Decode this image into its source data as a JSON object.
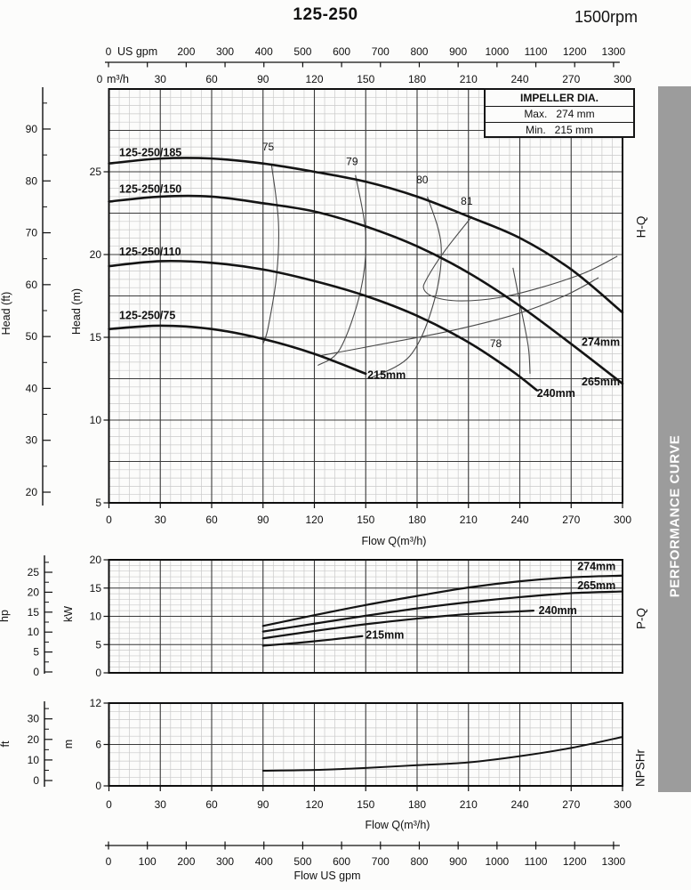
{
  "title": "125-250",
  "rpm": "1500rpm",
  "sidebar": {
    "label": "PERFORMANCE CURVE",
    "bg": "#9c9c9c",
    "fg": "#ffffff"
  },
  "impeller_box": {
    "title": "IMPELLER DIA.",
    "rows": [
      {
        "label": "Max.",
        "value": "274 mm"
      },
      {
        "label": "Min.",
        "value": "215 mm"
      }
    ]
  },
  "section_labels": {
    "hq": "H-Q",
    "pq": "P-Q",
    "npshr": "NPSHr"
  },
  "colors": {
    "grid_minor": "#c9c9c9",
    "grid_major": "#3b3b3b",
    "border": "#0f0f0f",
    "curve": "#141414",
    "eff": "#4a4a4a",
    "text": "#111111"
  },
  "top_axis": {
    "usgpm": {
      "zero": "0",
      "unit": "US gpm",
      "ticks": [
        200,
        300,
        400,
        500,
        600,
        700,
        800,
        900,
        1000,
        1100,
        1200,
        1300
      ]
    },
    "m3h": {
      "zero": "0",
      "unit": "m³/h",
      "ticks": [
        30,
        60,
        90,
        120,
        150,
        180,
        210,
        240,
        270,
        300
      ]
    }
  },
  "bottom_axis": {
    "usgpm": {
      "ticks": [
        0,
        100,
        200,
        300,
        400,
        500,
        600,
        700,
        800,
        900,
        1000,
        1100,
        1200,
        1300
      ],
      "label": "Flow US gpm"
    }
  },
  "chart_data": [
    {
      "id": "hq",
      "type": "line",
      "name": "H-Q",
      "x_range": [
        0,
        300
      ],
      "y_range": [
        5,
        30
      ],
      "x_major": 30,
      "x_minor": 6,
      "y_major": 2.5,
      "y_minor": 0.5,
      "x_ticks": [
        0,
        30,
        60,
        90,
        120,
        150,
        180,
        210,
        240,
        270,
        300
      ],
      "y_ticks": [
        5,
        10,
        15,
        20,
        25
      ],
      "xlabel": "Flow Q(m³/h)",
      "ylabel": "Head (m)",
      "secondary_axis": {
        "unit": "Head (ft)",
        "ticks": [
          20,
          30,
          40,
          50,
          60,
          70,
          80,
          90
        ]
      },
      "series": [
        {
          "name": "125-250/185",
          "label": {
            "x": 6,
            "y": 25.95
          },
          "end_label": {
            "text": "274mm",
            "x": 298.5,
            "y": 14.5,
            "anchor": "end"
          },
          "points": [
            [
              0,
              25.5
            ],
            [
              30,
              25.8
            ],
            [
              60,
              25.8
            ],
            [
              90,
              25.5
            ],
            [
              120,
              25.0
            ],
            [
              150,
              24.4
            ],
            [
              180,
              23.5
            ],
            [
              210,
              22.3
            ],
            [
              240,
              21.0
            ],
            [
              270,
              19.1
            ],
            [
              300,
              16.5
            ]
          ]
        },
        {
          "name": "125-250/150",
          "label": {
            "x": 6,
            "y": 23.75
          },
          "end_label": {
            "text": "265mm",
            "x": 298.5,
            "y": 12.1,
            "anchor": "end"
          },
          "points": [
            [
              0,
              23.2
            ],
            [
              30,
              23.5
            ],
            [
              60,
              23.5
            ],
            [
              90,
              23.1
            ],
            [
              120,
              22.6
            ],
            [
              150,
              21.7
            ],
            [
              180,
              20.5
            ],
            [
              210,
              18.9
            ],
            [
              240,
              16.9
            ],
            [
              270,
              14.6
            ],
            [
              300,
              12.2
            ]
          ]
        },
        {
          "name": "125-250/110",
          "label": {
            "x": 6,
            "y": 19.95
          },
          "end_label": {
            "text": "240mm",
            "x": 250,
            "y": 11.4,
            "anchor": "start"
          },
          "points": [
            [
              0,
              19.3
            ],
            [
              30,
              19.6
            ],
            [
              60,
              19.5
            ],
            [
              90,
              19.1
            ],
            [
              120,
              18.4
            ],
            [
              150,
              17.5
            ],
            [
              180,
              16.3
            ],
            [
              210,
              14.7
            ],
            [
              235,
              13.0
            ],
            [
              250,
              11.8
            ]
          ]
        },
        {
          "name": "125-250/75",
          "label": {
            "x": 6,
            "y": 16.1
          },
          "end_label": {
            "text": "215mm",
            "x": 151,
            "y": 12.5,
            "anchor": "start"
          },
          "points": [
            [
              0,
              15.5
            ],
            [
              30,
              15.7
            ],
            [
              60,
              15.5
            ],
            [
              90,
              14.9
            ],
            [
              120,
              14.0
            ],
            [
              150,
              12.8
            ]
          ]
        }
      ],
      "efficiency_contours": [
        {
          "label": "75",
          "label_x": 93,
          "label_y": 26.3,
          "points": [
            [
              95,
              25.4
            ],
            [
              99,
              22.0
            ],
            [
              98,
              18.8
            ],
            [
              93,
              15.6
            ],
            [
              90,
              14.6
            ]
          ]
        },
        {
          "label": "79",
          "label_x": 142,
          "label_y": 25.4,
          "points": [
            [
              144,
              24.8
            ],
            [
              150,
              21.2
            ],
            [
              147,
              17.8
            ],
            [
              135,
              14.3
            ],
            [
              122,
              13.3
            ]
          ]
        },
        {
          "label": "80",
          "label_x": 183,
          "label_y": 24.3,
          "points": [
            [
              186,
              23.5
            ],
            [
              194,
              20.6
            ],
            [
              190,
              17.2
            ],
            [
              176,
              13.9
            ],
            [
              152,
              12.5
            ]
          ]
        },
        {
          "label": "81",
          "label_x": 209,
          "label_y": 23.0,
          "points": [
            [
              212,
              22.3
            ],
            [
              196,
              20.2
            ],
            [
              186,
              18.6
            ],
            [
              184,
              17.9
            ],
            [
              191,
              17.4
            ],
            [
              206,
              17.2
            ],
            [
              228,
              17.4
            ],
            [
              252,
              18.0
            ],
            [
              278,
              18.9
            ],
            [
              297,
              19.9
            ]
          ]
        },
        {
          "label": "78",
          "label_x": 226,
          "label_y": 14.4,
          "points": [
            [
              236,
              19.2
            ],
            [
              241,
              16.6
            ],
            [
              245,
              14.4
            ],
            [
              246,
              12.8
            ]
          ]
        },
        {
          "label": "",
          "label_x": null,
          "label_y": null,
          "points": [
            [
              124,
              13.9
            ],
            [
              160,
              14.6
            ],
            [
              200,
              15.4
            ],
            [
              238,
              16.4
            ],
            [
              266,
              17.5
            ],
            [
              286,
              18.6
            ]
          ]
        }
      ]
    },
    {
      "id": "pq",
      "type": "line",
      "name": "P-Q",
      "x_range": [
        0,
        300
      ],
      "y_range": [
        0,
        20
      ],
      "x_major": 30,
      "x_minor": 6,
      "y_major": 5,
      "y_minor": 1,
      "x_ticks": [],
      "y_ticks": [
        0,
        5,
        10,
        15,
        20
      ],
      "xlabel": "",
      "ylabel": "kW",
      "secondary_axis": {
        "unit": "hp",
        "ticks": [
          0,
          5,
          10,
          15,
          20,
          25
        ]
      },
      "series": [
        {
          "name": "274mm",
          "label": {
            "x": 296,
            "y": 18.2,
            "anchor": "end"
          },
          "points": [
            [
              90,
              8.3
            ],
            [
              120,
              10.2
            ],
            [
              150,
              12.0
            ],
            [
              180,
              13.6
            ],
            [
              210,
              15.1
            ],
            [
              240,
              16.2
            ],
            [
              270,
              16.9
            ],
            [
              300,
              17.2
            ]
          ]
        },
        {
          "name": "265mm",
          "label": {
            "x": 296,
            "y": 14.8,
            "anchor": "end"
          },
          "points": [
            [
              90,
              7.3
            ],
            [
              120,
              8.7
            ],
            [
              150,
              10.1
            ],
            [
              180,
              11.4
            ],
            [
              210,
              12.5
            ],
            [
              240,
              13.4
            ],
            [
              270,
              14.1
            ],
            [
              300,
              14.4
            ]
          ]
        },
        {
          "name": "240mm",
          "label": {
            "x": 251,
            "y": 10.4
          },
          "points": [
            [
              90,
              6.1
            ],
            [
              120,
              7.4
            ],
            [
              150,
              8.6
            ],
            [
              180,
              9.6
            ],
            [
              210,
              10.4
            ],
            [
              235,
              10.8
            ],
            [
              248,
              11.0
            ]
          ]
        },
        {
          "name": "215mm",
          "label": {
            "x": 150,
            "y": 6.1
          },
          "points": [
            [
              90,
              4.8
            ],
            [
              110,
              5.3
            ],
            [
              130,
              5.9
            ],
            [
              148,
              6.5
            ]
          ]
        }
      ]
    },
    {
      "id": "np",
      "type": "line",
      "name": "NPSHr",
      "x_range": [
        0,
        300
      ],
      "y_range": [
        0,
        12
      ],
      "x_major": 30,
      "x_minor": 6,
      "y_major": 6,
      "y_minor": 1.2,
      "x_ticks": [
        0,
        30,
        60,
        90,
        120,
        150,
        180,
        210,
        240,
        270,
        300
      ],
      "y_ticks": [
        0,
        6,
        12
      ],
      "xlabel": "Flow Q(m³/h)",
      "ylabel": "m",
      "secondary_axis": {
        "unit": "ft",
        "ticks": [
          0,
          10,
          20,
          30
        ]
      },
      "series": [
        {
          "name": "NPSHr",
          "points": [
            [
              90,
              2.2
            ],
            [
              120,
              2.3
            ],
            [
              150,
              2.6
            ],
            [
              180,
              3.0
            ],
            [
              210,
              3.4
            ],
            [
              240,
              4.3
            ],
            [
              270,
              5.5
            ],
            [
              300,
              7.1
            ]
          ]
        }
      ]
    }
  ]
}
